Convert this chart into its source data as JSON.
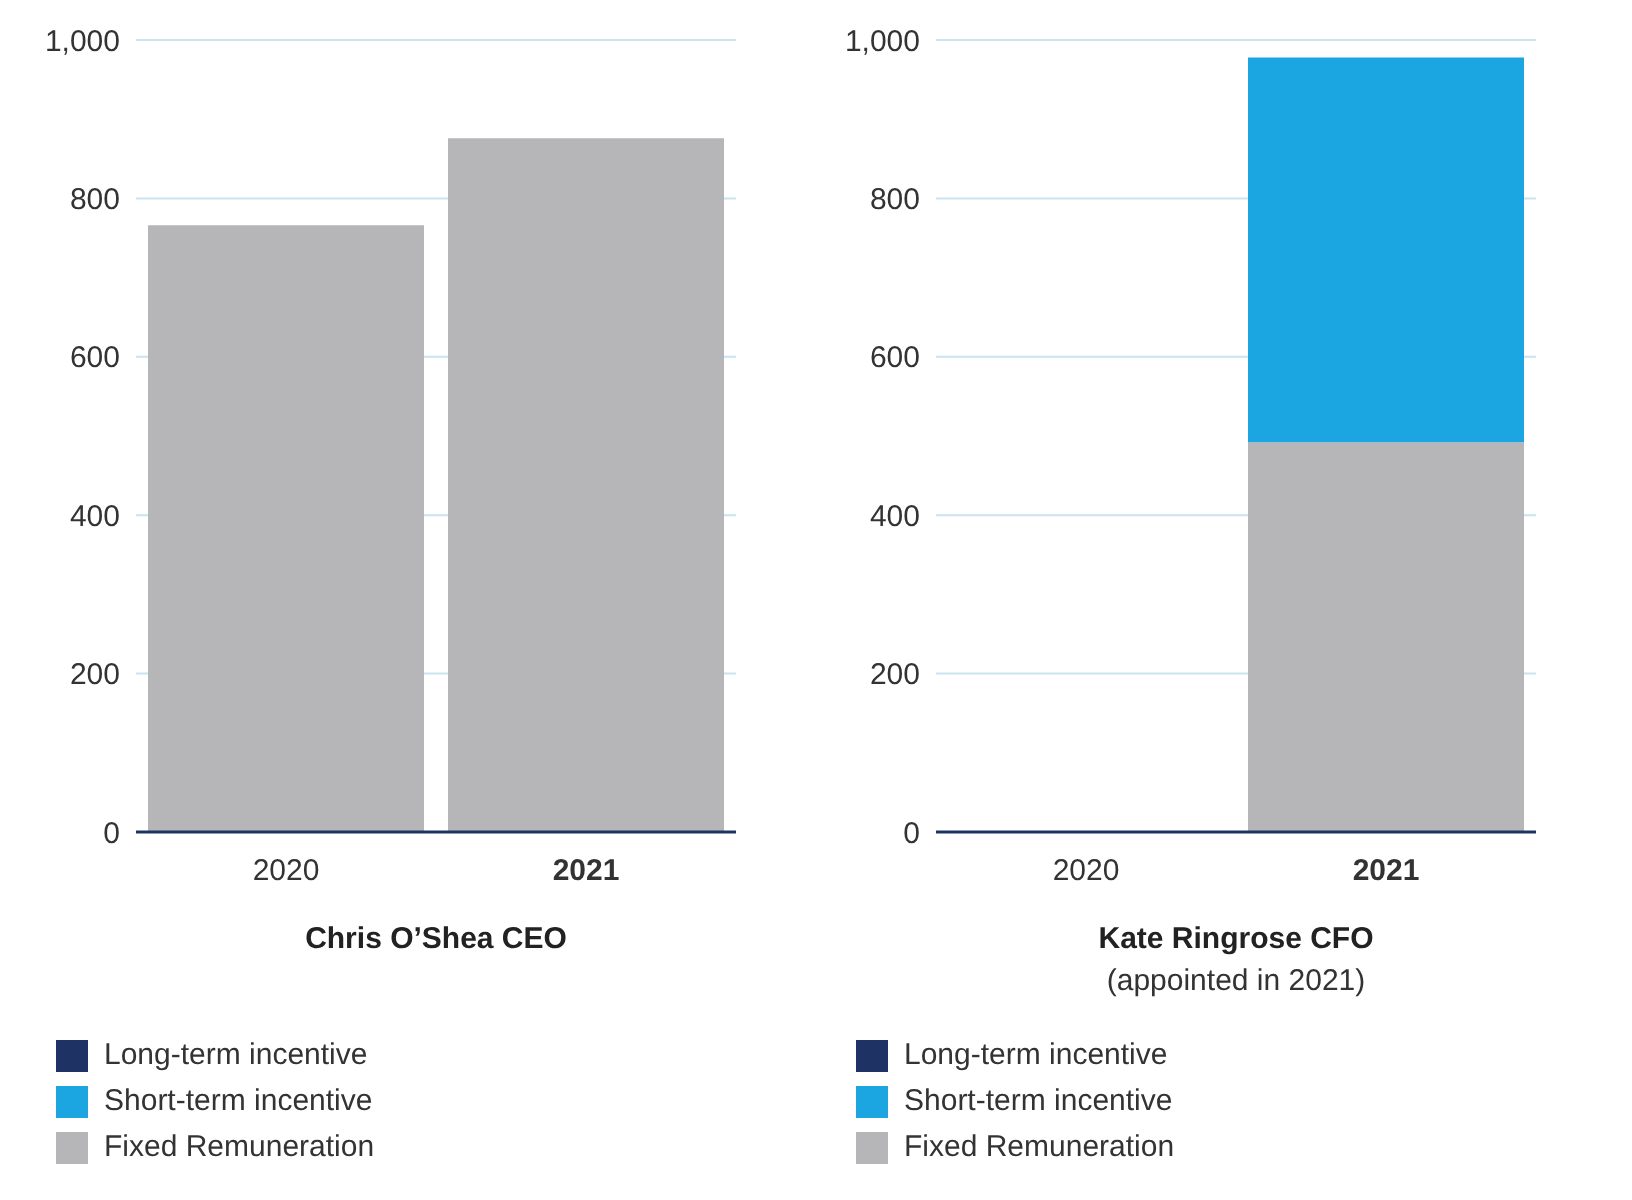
{
  "chart_data": [
    {
      "type": "bar",
      "stacked": true,
      "categories": [
        "2020",
        "2021"
      ],
      "xlabel": "Chris O’Shea CEO",
      "ylim": [
        0,
        1000
      ],
      "yticks": [
        0,
        {
          "value": 200,
          "label": "200"
        },
        {
          "value": 400,
          "label": "400"
        },
        {
          "value": 600,
          "label": "600"
        },
        {
          "value": 800,
          "label": "800"
        },
        {
          "value": 1000,
          "label": "1,000"
        }
      ],
      "grid": "y",
      "legend": "bottom",
      "series": [
        {
          "name": "Fixed Remuneration",
          "color": "#b6b6b8",
          "values": [
            766,
            876
          ]
        },
        {
          "name": "Short-term incentive",
          "color": "#1ba6e2",
          "values": [
            0,
            0
          ]
        },
        {
          "name": "Long-term incentive",
          "color": "#1e3264",
          "values": [
            0,
            0
          ]
        }
      ]
    },
    {
      "type": "bar",
      "stacked": true,
      "categories": [
        "2020",
        "2021"
      ],
      "xlabel": "Kate Ringrose CFO",
      "annotations": [
        "(appointed in 2021)"
      ],
      "ylim": [
        0,
        1000
      ],
      "yticks": [
        0,
        {
          "value": 200,
          "label": "200"
        },
        {
          "value": 400,
          "label": "400"
        },
        {
          "value": 600,
          "label": "600"
        },
        {
          "value": 800,
          "label": "800"
        },
        {
          "value": 1000,
          "label": "1,000"
        }
      ],
      "grid": "y",
      "legend": "bottom",
      "series": [
        {
          "name": "Fixed Remuneration",
          "color": "#b6b6b8",
          "values": [
            0,
            492
          ]
        },
        {
          "name": "Short-term incentive",
          "color": "#1ba6e2",
          "values": [
            0,
            486
          ]
        },
        {
          "name": "Long-term incentive",
          "color": "#1e3264",
          "values": [
            0,
            0
          ]
        }
      ]
    }
  ]
}
